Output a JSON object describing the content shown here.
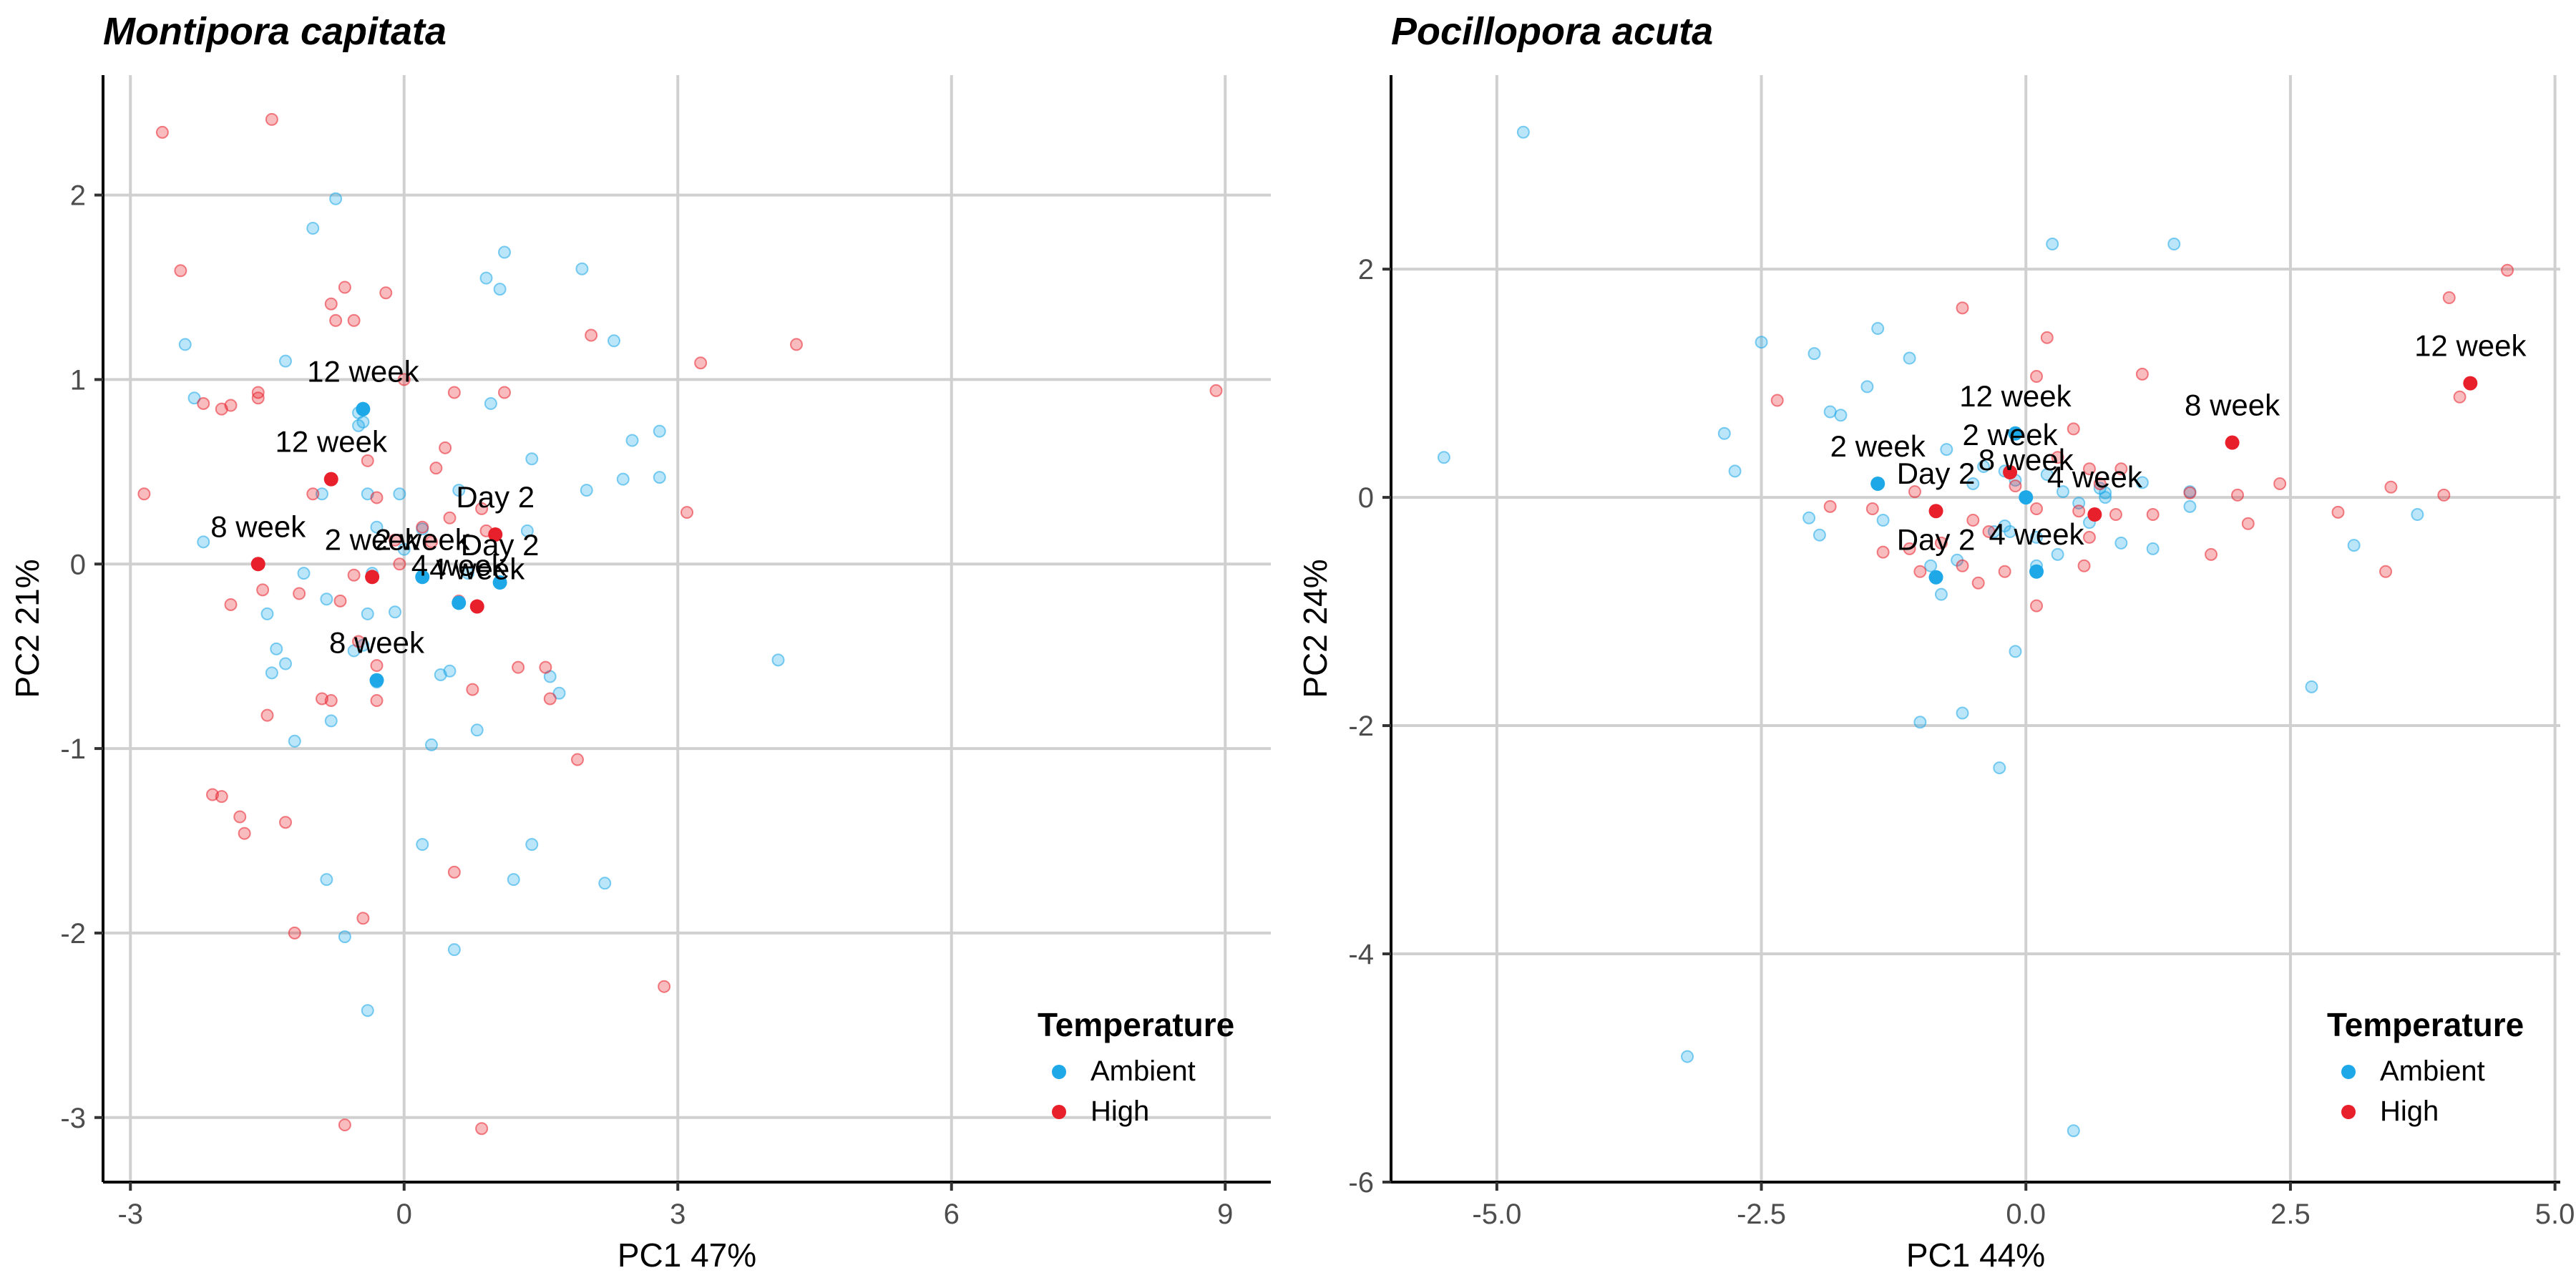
{
  "chart_data": [
    {
      "type": "scatter",
      "title": "Montipora capitata",
      "xlabel": "PC1 47%",
      "ylabel": "PC2 21%",
      "xlim": [
        -3.3,
        9.5
      ],
      "ylim": [
        -3.35,
        2.65
      ],
      "xticks": [
        -3,
        0,
        3,
        6,
        9
      ],
      "yticks": [
        -3,
        -2,
        -1,
        0,
        1,
        2
      ],
      "xtick_labels": [
        "-3",
        "0",
        "3",
        "6",
        "9"
      ],
      "ytick_labels": [
        "-3",
        "-2",
        "-1",
        "0",
        "1",
        "2"
      ],
      "grid": true,
      "legend": {
        "title": "Temperature",
        "position": "bottom-right",
        "entries": [
          "Ambient",
          "High"
        ]
      },
      "colors": {
        "Ambient": "#1EA8E8",
        "High": "#E8202C"
      },
      "series": [
        {
          "name": "Ambient",
          "points": [
            [
              -2.4,
              1.19
            ],
            [
              -2.3,
              0.9
            ],
            [
              -2.2,
              0.12
            ],
            [
              -1.3,
              1.1
            ],
            [
              -1.0,
              1.82
            ],
            [
              -0.75,
              1.98
            ],
            [
              -0.5,
              0.75
            ],
            [
              -0.5,
              0.82
            ],
            [
              -0.45,
              0.77
            ],
            [
              -0.4,
              0.38
            ],
            [
              -0.3,
              0.2
            ],
            [
              -0.05,
              0.38
            ],
            [
              0.0,
              0.08
            ],
            [
              0.2,
              0.19
            ],
            [
              0.3,
              -0.98
            ],
            [
              0.4,
              -0.6
            ],
            [
              0.5,
              -0.58
            ],
            [
              0.6,
              0.4
            ],
            [
              0.7,
              -0.05
            ],
            [
              0.8,
              -0.9
            ],
            [
              0.9,
              1.55
            ],
            [
              0.95,
              0.87
            ],
            [
              1.05,
              1.49
            ],
            [
              1.1,
              1.69
            ],
            [
              1.2,
              -1.71
            ],
            [
              1.35,
              0.18
            ],
            [
              1.4,
              0.57
            ],
            [
              1.4,
              -1.52
            ],
            [
              1.6,
              -0.61
            ],
            [
              1.7,
              -0.7
            ],
            [
              1.95,
              1.6
            ],
            [
              2.0,
              0.4
            ],
            [
              2.2,
              -1.73
            ],
            [
              2.3,
              1.21
            ],
            [
              2.4,
              0.46
            ],
            [
              2.5,
              0.67
            ],
            [
              2.8,
              0.72
            ],
            [
              2.8,
              0.47
            ],
            [
              4.1,
              -0.52
            ],
            [
              -1.5,
              -0.27
            ],
            [
              -1.45,
              -0.59
            ],
            [
              -1.4,
              -0.46
            ],
            [
              -1.3,
              -0.54
            ],
            [
              -1.2,
              -0.96
            ],
            [
              -1.1,
              -0.05
            ],
            [
              -0.9,
              0.38
            ],
            [
              -0.85,
              -0.19
            ],
            [
              -0.8,
              -0.85
            ],
            [
              -0.55,
              -0.47
            ],
            [
              -0.45,
              -0.44
            ],
            [
              -0.4,
              -0.27
            ],
            [
              -0.3,
              -0.64
            ],
            [
              -0.35,
              -0.05
            ],
            [
              -0.1,
              -0.26
            ],
            [
              0.2,
              -1.52
            ],
            [
              0.55,
              -2.09
            ],
            [
              -0.65,
              -2.02
            ],
            [
              -0.4,
              -2.42
            ],
            [
              -0.85,
              -1.71
            ]
          ]
        },
        {
          "name": "High",
          "points": [
            [
              -2.85,
              0.38
            ],
            [
              -2.65,
              2.34
            ],
            [
              -2.45,
              1.59
            ],
            [
              -2.2,
              0.87
            ],
            [
              -2.0,
              0.84
            ],
            [
              -1.9,
              0.86
            ],
            [
              -1.9,
              -0.22
            ],
            [
              -1.6,
              0.93
            ],
            [
              -1.6,
              0.9
            ],
            [
              -1.55,
              -0.14
            ],
            [
              -1.45,
              2.41
            ],
            [
              -1.5,
              -0.82
            ],
            [
              -1.3,
              -1.4
            ],
            [
              -1.2,
              -2.0
            ],
            [
              -1.15,
              -0.16
            ],
            [
              -1.0,
              0.38
            ],
            [
              -0.9,
              -0.73
            ],
            [
              -0.8,
              -0.74
            ],
            [
              -0.8,
              1.41
            ],
            [
              -0.75,
              1.32
            ],
            [
              -0.65,
              1.5
            ],
            [
              -0.55,
              1.32
            ],
            [
              -0.4,
              0.56
            ],
            [
              -0.3,
              0.36
            ],
            [
              -0.2,
              1.47
            ],
            [
              -0.1,
              0.13
            ],
            [
              -0.05,
              0.0
            ],
            [
              0.0,
              1.0
            ],
            [
              0.2,
              0.2
            ],
            [
              0.3,
              0.12
            ],
            [
              0.35,
              0.52
            ],
            [
              0.45,
              0.63
            ],
            [
              0.5,
              0.25
            ],
            [
              0.55,
              0.93
            ],
            [
              0.55,
              -1.67
            ],
            [
              0.6,
              -0.2
            ],
            [
              0.75,
              -0.68
            ],
            [
              0.85,
              0.3
            ],
            [
              0.9,
              0.18
            ],
            [
              1.1,
              0.93
            ],
            [
              1.25,
              -0.56
            ],
            [
              1.55,
              -0.56
            ],
            [
              1.6,
              -0.73
            ],
            [
              1.9,
              -1.06
            ],
            [
              2.05,
              1.24
            ],
            [
              2.85,
              -2.29
            ],
            [
              3.1,
              0.28
            ],
            [
              3.25,
              1.09
            ],
            [
              4.3,
              1.19
            ],
            [
              8.9,
              0.94
            ],
            [
              -2.1,
              -1.25
            ],
            [
              -2.0,
              -1.26
            ],
            [
              -1.8,
              -1.37
            ],
            [
              -1.75,
              -1.46
            ],
            [
              -0.65,
              -3.04
            ],
            [
              0.85,
              -3.06
            ],
            [
              -0.45,
              -1.92
            ],
            [
              -0.5,
              -0.42
            ],
            [
              -0.55,
              -0.06
            ],
            [
              -0.7,
              -0.2
            ],
            [
              -0.3,
              -0.55
            ],
            [
              -0.3,
              -0.74
            ]
          ]
        }
      ],
      "centroids": [
        {
          "temperature": "Ambient",
          "label": "12 week",
          "x": -0.45,
          "y": 0.84
        },
        {
          "temperature": "Ambient",
          "label": "8 week",
          "x": -0.3,
          "y": -0.63
        },
        {
          "temperature": "Ambient",
          "label": "Day 2",
          "x": 1.05,
          "y": -0.1
        },
        {
          "temperature": "Ambient",
          "label": "2 week",
          "x": 0.2,
          "y": -0.07
        },
        {
          "temperature": "Ambient",
          "label": "4 week",
          "x": 0.6,
          "y": -0.21
        },
        {
          "temperature": "High",
          "label": "12 week",
          "x": -0.8,
          "y": 0.46
        },
        {
          "temperature": "High",
          "label": "8 week",
          "x": -1.6,
          "y": 0.0
        },
        {
          "temperature": "High",
          "label": "2 week",
          "x": -0.35,
          "y": -0.07
        },
        {
          "temperature": "High",
          "label": "Day 2",
          "x": 1.0,
          "y": 0.16
        },
        {
          "temperature": "High",
          "label": "4 week",
          "x": 0.8,
          "y": -0.23
        }
      ]
    },
    {
      "type": "scatter",
      "title": "Pocillopora acuta",
      "xlabel": "PC1 44%",
      "ylabel": "PC2 24%",
      "xlim": [
        -6.0,
        5.05
      ],
      "ylim": [
        -6.0,
        3.7
      ],
      "xticks": [
        -5.0,
        -2.5,
        0.0,
        2.5,
        5.0
      ],
      "yticks": [
        -6,
        -4,
        -2,
        0,
        2
      ],
      "xtick_labels": [
        "-5.0",
        "-2.5",
        "0.0",
        "2.5",
        "5.0"
      ],
      "ytick_labels": [
        "-6",
        "-4",
        "-2",
        "0",
        "2"
      ],
      "grid": true,
      "legend": {
        "title": "Temperature",
        "position": "bottom-right",
        "entries": [
          "Ambient",
          "High"
        ]
      },
      "colors": {
        "Ambient": "#1EA8E8",
        "High": "#E8202C"
      },
      "series": [
        {
          "name": "Ambient",
          "points": [
            [
              -5.5,
              0.35
            ],
            [
              -4.75,
              3.2
            ],
            [
              -3.2,
              -4.9
            ],
            [
              -2.85,
              0.56
            ],
            [
              -2.75,
              0.23
            ],
            [
              -2.5,
              1.36
            ],
            [
              -2.05,
              -0.18
            ],
            [
              -2.0,
              1.26
            ],
            [
              -1.95,
              -0.33
            ],
            [
              -1.85,
              0.75
            ],
            [
              -1.75,
              0.72
            ],
            [
              -1.5,
              0.97
            ],
            [
              -1.4,
              1.48
            ],
            [
              -1.35,
              -0.2
            ],
            [
              -1.1,
              1.22
            ],
            [
              -1.0,
              -1.97
            ],
            [
              -0.8,
              -0.85
            ],
            [
              -0.75,
              0.42
            ],
            [
              -0.65,
              -0.55
            ],
            [
              -0.6,
              -1.89
            ],
            [
              -0.5,
              0.12
            ],
            [
              -0.4,
              0.27
            ],
            [
              -0.3,
              -0.3
            ],
            [
              -0.25,
              -2.37
            ],
            [
              -0.2,
              0.23
            ],
            [
              -0.15,
              -0.3
            ],
            [
              -0.1,
              0.15
            ],
            [
              0.1,
              -0.35
            ],
            [
              0.2,
              0.2
            ],
            [
              0.3,
              -0.5
            ],
            [
              0.35,
              0.05
            ],
            [
              0.5,
              -0.05
            ],
            [
              0.6,
              -0.22
            ],
            [
              0.7,
              0.08
            ],
            [
              0.75,
              0.0
            ],
            [
              0.9,
              -0.4
            ],
            [
              1.1,
              0.13
            ],
            [
              1.2,
              -0.45
            ],
            [
              1.4,
              2.22
            ],
            [
              1.55,
              -0.08
            ],
            [
              1.55,
              0.05
            ],
            [
              2.7,
              -1.66
            ],
            [
              3.1,
              -0.42
            ],
            [
              3.7,
              -0.15
            ],
            [
              -0.1,
              -1.35
            ],
            [
              0.1,
              -0.6
            ],
            [
              -0.2,
              -0.25
            ],
            [
              0.25,
              2.22
            ],
            [
              0.45,
              -5.55
            ],
            [
              -0.9,
              -0.6
            ],
            [
              0.75,
              0.04
            ]
          ]
        },
        {
          "name": "High",
          "points": [
            [
              -2.35,
              0.85
            ],
            [
              -1.85,
              -0.08
            ],
            [
              -1.45,
              -0.1
            ],
            [
              -1.35,
              -0.48
            ],
            [
              -1.1,
              -0.45
            ],
            [
              -1.05,
              0.05
            ],
            [
              -1.0,
              -0.65
            ],
            [
              -0.8,
              -0.4
            ],
            [
              -0.6,
              -0.6
            ],
            [
              -0.6,
              1.66
            ],
            [
              -0.45,
              -0.75
            ],
            [
              -0.35,
              -0.3
            ],
            [
              -0.2,
              -0.65
            ],
            [
              -0.1,
              0.1
            ],
            [
              0.1,
              -0.1
            ],
            [
              0.1,
              1.06
            ],
            [
              0.2,
              1.4
            ],
            [
              0.3,
              0.35
            ],
            [
              0.45,
              0.6
            ],
            [
              0.5,
              -0.12
            ],
            [
              0.55,
              -0.6
            ],
            [
              0.6,
              -0.35
            ],
            [
              0.7,
              0.12
            ],
            [
              0.85,
              -0.15
            ],
            [
              0.9,
              0.25
            ],
            [
              1.1,
              1.08
            ],
            [
              1.2,
              -0.15
            ],
            [
              1.55,
              0.04
            ],
            [
              1.75,
              -0.5
            ],
            [
              2.0,
              0.02
            ],
            [
              2.1,
              -0.23
            ],
            [
              2.4,
              0.12
            ],
            [
              2.95,
              -0.13
            ],
            [
              3.4,
              -0.65
            ],
            [
              3.45,
              0.09
            ],
            [
              3.95,
              0.02
            ],
            [
              4.0,
              1.75
            ],
            [
              4.1,
              0.88
            ],
            [
              4.55,
              1.99
            ],
            [
              0.1,
              -0.95
            ],
            [
              -0.5,
              -0.2
            ],
            [
              0.6,
              0.25
            ]
          ]
        }
      ],
      "centroids": [
        {
          "temperature": "Ambient",
          "label": "12 week",
          "x": -0.1,
          "y": 0.56
        },
        {
          "temperature": "Ambient",
          "label": "2 week",
          "x": -1.4,
          "y": 0.12
        },
        {
          "temperature": "Ambient",
          "label": "8 week",
          "x": 0.0,
          "y": 0.0
        },
        {
          "temperature": "Ambient",
          "label": "Day 2",
          "x": -0.85,
          "y": -0.7
        },
        {
          "temperature": "Ambient",
          "label": "4 week",
          "x": 0.1,
          "y": -0.65
        },
        {
          "temperature": "High",
          "label": "12 week",
          "x": 4.2,
          "y": 1.0
        },
        {
          "temperature": "High",
          "label": "8 week",
          "x": 1.95,
          "y": 0.48
        },
        {
          "temperature": "High",
          "label": "2 week",
          "x": -0.15,
          "y": 0.22
        },
        {
          "temperature": "High",
          "label": "Day 2",
          "x": -0.85,
          "y": -0.12
        },
        {
          "temperature": "High",
          "label": "4 week",
          "x": 0.65,
          "y": -0.15
        }
      ]
    }
  ]
}
